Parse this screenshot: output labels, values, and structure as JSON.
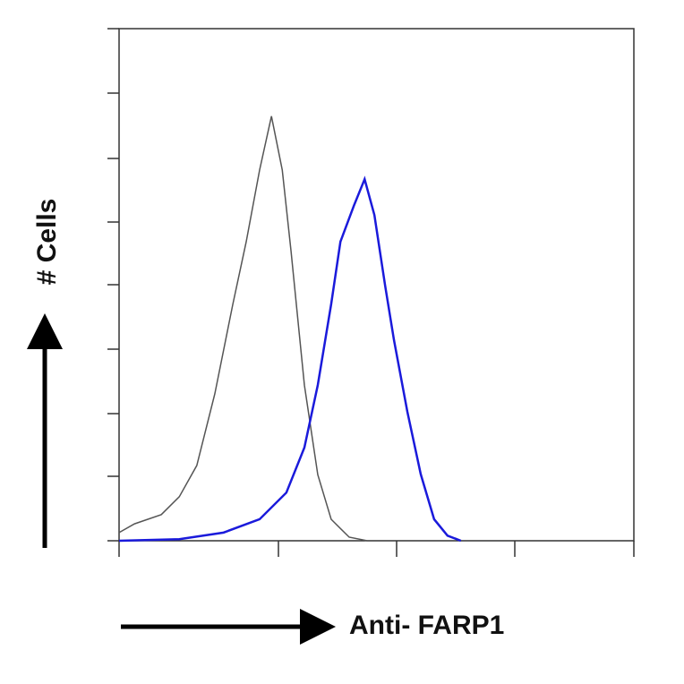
{
  "chart_data": {
    "type": "line",
    "y_label": "# Cells",
    "x_label": "Anti- FARP1",
    "xlim": [
      0,
      100
    ],
    "ylim": [
      0,
      100
    ],
    "series": [
      {
        "color": "#555555",
        "x": [
          0,
          3.0,
          8.2,
          11.7,
          15.1,
          18.6,
          22.1,
          24.7,
          27.3,
          29.6,
          31.7,
          33.4,
          36.0,
          38.6,
          41.2,
          44.7,
          48.2
        ],
        "values": [
          1.6,
          3.3,
          5.1,
          8.6,
          14.7,
          28.7,
          46.2,
          58.4,
          72.4,
          82.9,
          72.4,
          56.6,
          30.4,
          12.9,
          4.2,
          0.7,
          0
        ]
      },
      {
        "color": "#1a1adb",
        "x": [
          0,
          11.7,
          20.3,
          27.3,
          32.5,
          36.0,
          38.6,
          41.2,
          43.0,
          45.6,
          47.7,
          49.6,
          51.7,
          53.4,
          56.0,
          58.6,
          61.2,
          63.8,
          66.4
        ],
        "values": [
          0,
          0.3,
          1.6,
          4.2,
          9.4,
          18.2,
          30.4,
          46.2,
          58.4,
          65.4,
          70.6,
          63.6,
          49.7,
          39.2,
          25.2,
          13.0,
          4.2,
          1.0,
          0
        ]
      }
    ]
  }
}
